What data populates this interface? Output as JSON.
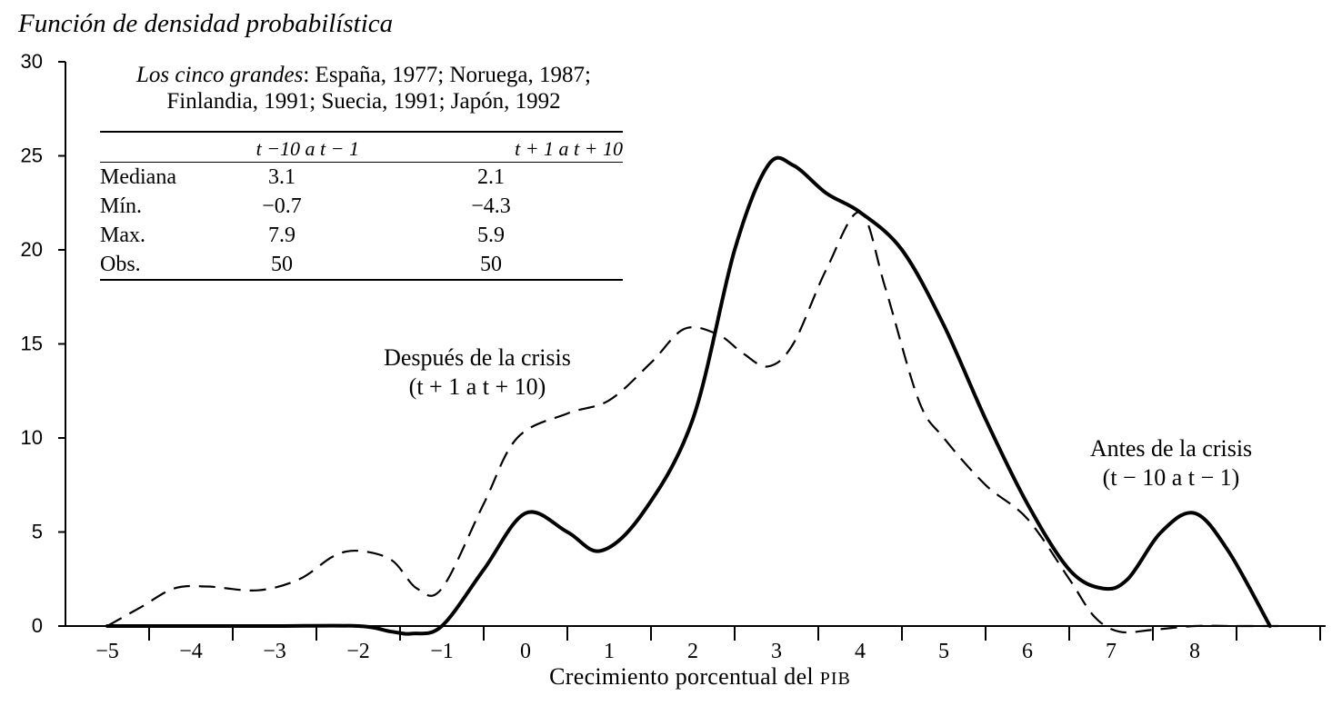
{
  "chart_data": {
    "type": "line",
    "title": "Función de densidad probabilística",
    "xlabel_main": "Crecimiento porcentual del",
    "xlabel_abbr": "PIB",
    "ylabel": "",
    "ylim": [
      0,
      30
    ],
    "xlim": [
      -5.5,
      10.2
    ],
    "yticks": [
      "0",
      "5",
      "10",
      "15",
      "20",
      "25",
      "30"
    ],
    "xtick_labels": [
      "−5",
      "−4",
      "−3",
      "−2",
      "−1",
      "0",
      "1",
      "2",
      "3",
      "4",
      "5",
      "6",
      "7",
      "8"
    ],
    "series": [
      {
        "name": "Antes de la crisis (t − 10 a t − 1)",
        "style": "solid",
        "points": [
          [
            -5,
            0
          ],
          [
            -4,
            0
          ],
          [
            -3,
            0
          ],
          [
            -2,
            0
          ],
          [
            -1.6,
            -0.3
          ],
          [
            -1.35,
            -0.4
          ],
          [
            -1,
            0
          ],
          [
            -0.5,
            3
          ],
          [
            0,
            6
          ],
          [
            0.5,
            5
          ],
          [
            0.9,
            4
          ],
          [
            1.4,
            6
          ],
          [
            2,
            11
          ],
          [
            2.5,
            20
          ],
          [
            2.9,
            24.5
          ],
          [
            3.2,
            24.5
          ],
          [
            3.6,
            23
          ],
          [
            4,
            22
          ],
          [
            4.5,
            20
          ],
          [
            5,
            16
          ],
          [
            5.5,
            11
          ],
          [
            6,
            6.5
          ],
          [
            6.5,
            3
          ],
          [
            6.9,
            2
          ],
          [
            7.2,
            2.5
          ],
          [
            7.6,
            5
          ],
          [
            8,
            6
          ],
          [
            8.4,
            4
          ],
          [
            8.9,
            0
          ]
        ]
      },
      {
        "name": "Después de la crisis (t + 1 a t + 10)",
        "style": "dashed",
        "points": [
          [
            -5,
            0
          ],
          [
            -4.6,
            1
          ],
          [
            -4.2,
            2
          ],
          [
            -3.8,
            2.1
          ],
          [
            -3.2,
            1.9
          ],
          [
            -2.7,
            2.5
          ],
          [
            -2.3,
            3.7
          ],
          [
            -2,
            4
          ],
          [
            -1.6,
            3.5
          ],
          [
            -1.3,
            2
          ],
          [
            -1,
            2
          ],
          [
            -0.5,
            6.5
          ],
          [
            -0.1,
            10
          ],
          [
            0.5,
            11.3
          ],
          [
            1,
            12
          ],
          [
            1.5,
            14
          ],
          [
            1.9,
            15.8
          ],
          [
            2.3,
            15.5
          ],
          [
            2.6,
            14.5
          ],
          [
            2.9,
            13.8
          ],
          [
            3.2,
            15
          ],
          [
            3.6,
            19
          ],
          [
            4,
            22
          ],
          [
            4.3,
            18
          ],
          [
            4.7,
            12
          ],
          [
            5,
            10
          ],
          [
            5.5,
            7.5
          ],
          [
            6,
            5.7
          ],
          [
            6.5,
            2.5
          ],
          [
            6.8,
            0.5
          ],
          [
            7.1,
            -0.3
          ],
          [
            7.5,
            -0.2
          ],
          [
            8,
            0
          ],
          [
            8.5,
            0
          ],
          [
            9,
            0
          ]
        ]
      }
    ],
    "annotations": [
      {
        "line1": "Después de la crisis",
        "line2": "(t + 1 a t + 10)"
      },
      {
        "line1": "Antes de la crisis",
        "line2": "(t − 10 a t − 1)"
      }
    ],
    "inset": {
      "heading_italic": "Los cinco grandes",
      "heading_line1_rest": ": España, 1977; Noruega, 1987;",
      "heading_line2": "Finlandia, 1991; Suecia, 1991; Japón, 1992",
      "columns": [
        "",
        "t −10 a t − 1",
        "t + 1 a t + 10"
      ],
      "rows": [
        [
          "Mediana",
          "3.1",
          "2.1"
        ],
        [
          "Mín.",
          "−0.7",
          "−4.3"
        ],
        [
          "Max.",
          "7.9",
          "5.9"
        ],
        [
          "Obs.",
          "50",
          "50"
        ]
      ]
    }
  }
}
